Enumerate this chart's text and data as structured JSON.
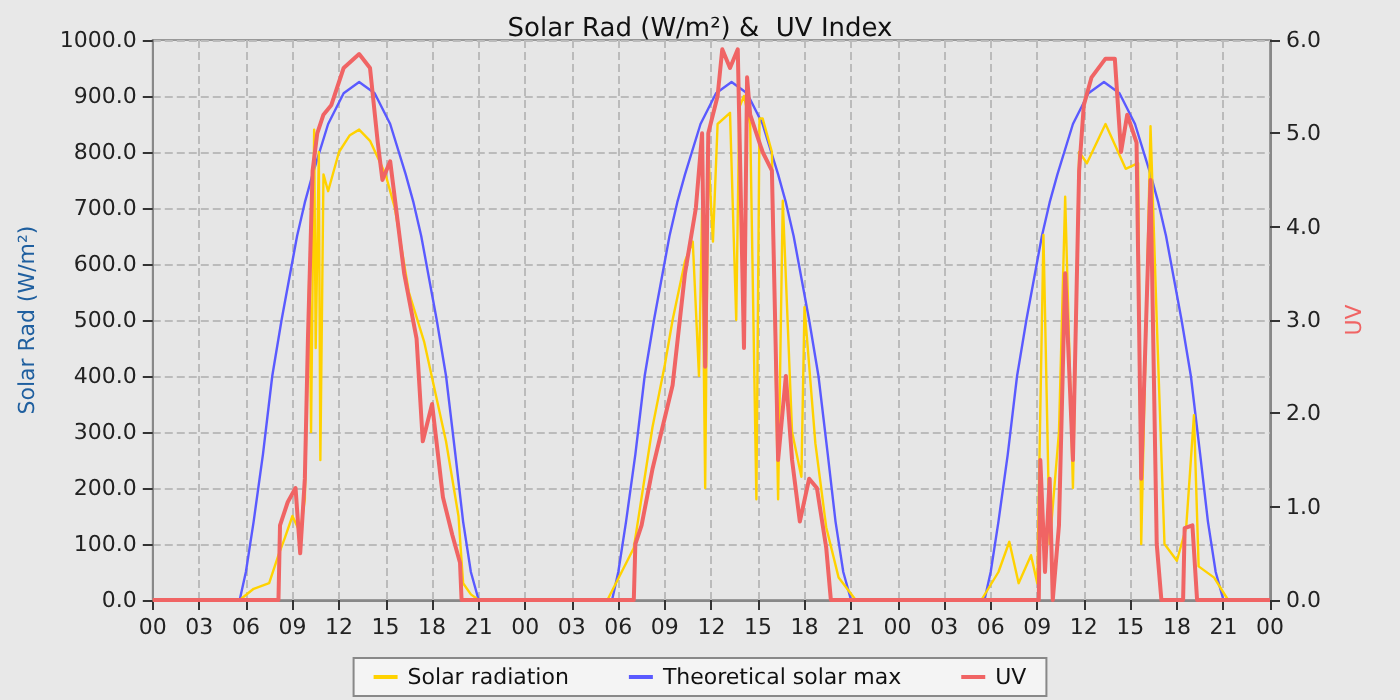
{
  "chart_data": {
    "type": "line",
    "title": "Solar Rad (W/m²) &  UV Index",
    "ylabel": "Solar Rad (W/m²)",
    "y2label": "UV",
    "xlim": [
      0,
      72
    ],
    "xticks": [
      {
        "value": 0,
        "label": "00"
      },
      {
        "value": 3,
        "label": "03"
      },
      {
        "value": 6,
        "label": "06"
      },
      {
        "value": 9,
        "label": "09"
      },
      {
        "value": 12,
        "label": "12"
      },
      {
        "value": 15,
        "label": "15"
      },
      {
        "value": 18,
        "label": "18"
      },
      {
        "value": 21,
        "label": "21"
      },
      {
        "value": 24,
        "label": "00"
      },
      {
        "value": 27,
        "label": "03"
      },
      {
        "value": 30,
        "label": "06"
      },
      {
        "value": 33,
        "label": "09"
      },
      {
        "value": 36,
        "label": "12"
      },
      {
        "value": 39,
        "label": "15"
      },
      {
        "value": 42,
        "label": "18"
      },
      {
        "value": 45,
        "label": "21"
      },
      {
        "value": 48,
        "label": "00"
      },
      {
        "value": 51,
        "label": "03"
      },
      {
        "value": 54,
        "label": "06"
      },
      {
        "value": 57,
        "label": "09"
      },
      {
        "value": 60,
        "label": "12"
      },
      {
        "value": 63,
        "label": "15"
      },
      {
        "value": 66,
        "label": "18"
      },
      {
        "value": 69,
        "label": "21"
      },
      {
        "value": 72,
        "label": "00"
      }
    ],
    "ylim": [
      0,
      1000
    ],
    "yticks": [
      {
        "value": 0,
        "label": "0.0"
      },
      {
        "value": 100,
        "label": "100.0"
      },
      {
        "value": 200,
        "label": "200.0"
      },
      {
        "value": 300,
        "label": "300.0"
      },
      {
        "value": 400,
        "label": "400.0"
      },
      {
        "value": 500,
        "label": "500.0"
      },
      {
        "value": 600,
        "label": "600.0"
      },
      {
        "value": 700,
        "label": "700.0"
      },
      {
        "value": 800,
        "label": "800.0"
      },
      {
        "value": 900,
        "label": "900.0"
      },
      {
        "value": 1000,
        "label": "1000.0"
      }
    ],
    "y2lim": [
      0,
      6
    ],
    "y2ticks": [
      {
        "value": 0,
        "label": "0.0"
      },
      {
        "value": 1,
        "label": "1.0"
      },
      {
        "value": 2,
        "label": "2.0"
      },
      {
        "value": 3,
        "label": "3.0"
      },
      {
        "value": 4,
        "label": "4.0"
      },
      {
        "value": 5,
        "label": "5.0"
      },
      {
        "value": 6,
        "label": "6.0"
      }
    ],
    "grid": true,
    "legend": "bottom",
    "marker": "none",
    "line_style": "solid",
    "series": [
      {
        "name": "Solar radiation",
        "color": "#ffd200",
        "x": [
          0,
          5.6,
          6.5,
          7.5,
          8.1,
          8.5,
          9,
          9.5,
          9.8,
          10.1,
          10.2,
          10.4,
          10.5,
          10.7,
          10.8,
          11,
          11.3,
          12,
          12.7,
          13.3,
          14,
          14.5,
          15,
          15.6,
          16.5,
          17.5,
          18.9,
          19.7,
          20,
          20.5,
          21,
          29.3,
          31,
          32.2,
          33,
          33.5,
          34.3,
          34.8,
          35.2,
          35.4,
          35.6,
          35.8,
          36.1,
          36.4,
          37.2,
          37.6,
          37.8,
          38.1,
          38.5,
          38.9,
          39.1,
          39.3,
          39.9,
          40.3,
          40.6,
          41.2,
          41.8,
          42,
          42.7,
          43.4,
          44.2,
          45.3,
          53.4,
          54.5,
          55.2,
          55.8,
          56.6,
          57,
          57.4,
          57.8,
          58.4,
          58.8,
          59.3,
          59.7,
          60.2,
          61.4,
          62.7,
          63.5,
          63.7,
          64.3,
          64.7,
          65.2,
          66,
          66.6,
          67.1,
          67.4,
          68.4,
          69.3,
          72
        ],
        "values": [
          0,
          0,
          20,
          30,
          80,
          110,
          150,
          120,
          180,
          600,
          300,
          840,
          450,
          800,
          250,
          760,
          730,
          800,
          830,
          840,
          820,
          790,
          760,
          700,
          550,
          460,
          283,
          150,
          30,
          10,
          0,
          0,
          93,
          308,
          420,
          500,
          605,
          640,
          400,
          700,
          200,
          800,
          640,
          850,
          870,
          500,
          880,
          900,
          850,
          180,
          860,
          860,
          800,
          180,
          713,
          300,
          220,
          523,
          280,
          130,
          40,
          0,
          0,
          50,
          104,
          30,
          80,
          30,
          652,
          100,
          300,
          720,
          200,
          800,
          780,
          850,
          770,
          780,
          100,
          846,
          500,
          100,
          70,
          130,
          330,
          60,
          40,
          0,
          0
        ]
      },
      {
        "name": "Theoretical solar max",
        "color": "#5a5aff",
        "x": [
          0,
          5.6,
          6,
          6.5,
          7.1,
          7.7,
          8.3,
          9.3,
          9.8,
          10.3,
          11.3,
          12.3,
          13.3,
          14.3,
          15.3,
          16.3,
          16.8,
          17.3,
          18.3,
          18.9,
          19.5,
          20,
          20.5,
          21,
          29.6,
          30,
          30.5,
          31.1,
          31.7,
          32.3,
          33.3,
          33.8,
          34.3,
          35.3,
          36.3,
          37.3,
          38.3,
          39.3,
          40.3,
          40.8,
          41.3,
          42.3,
          42.9,
          43.5,
          44,
          44.5,
          45,
          53.6,
          54,
          54.5,
          55.1,
          55.7,
          56.3,
          57.3,
          57.8,
          58.3,
          59.3,
          60.3,
          61.3,
          62.3,
          63.3,
          64.3,
          64.8,
          65.3,
          66.3,
          66.9,
          67.5,
          68,
          68.5,
          69,
          72
        ],
        "values": [
          0,
          0,
          50,
          140,
          260,
          400,
          500,
          650,
          710,
          760,
          850,
          905,
          925,
          905,
          850,
          760,
          710,
          650,
          500,
          400,
          260,
          140,
          50,
          0,
          0,
          50,
          140,
          260,
          400,
          500,
          650,
          710,
          760,
          850,
          905,
          925,
          905,
          850,
          760,
          710,
          650,
          500,
          400,
          260,
          140,
          50,
          0,
          0,
          50,
          140,
          260,
          400,
          500,
          650,
          710,
          760,
          850,
          905,
          925,
          905,
          850,
          760,
          710,
          650,
          500,
          400,
          260,
          140,
          50,
          0,
          0
        ]
      },
      {
        "name": "UV",
        "color": "#f06464",
        "axis": "y2",
        "x": [
          0,
          8.1,
          8.2,
          8.7,
          9.2,
          9.5,
          9.8,
          10,
          10.3,
          10.6,
          11,
          11.5,
          12.3,
          13.3,
          14,
          14.5,
          14.8,
          15.3,
          16.2,
          17,
          17.4,
          18,
          18.7,
          19.3,
          19.8,
          19.9,
          31,
          31.1,
          31.5,
          32.2,
          33.5,
          34.3,
          35,
          35.4,
          35.6,
          35.8,
          36.4,
          36.7,
          37.2,
          37.7,
          38.1,
          38.3,
          38.5,
          39.3,
          39.9,
          40.3,
          40.8,
          41.2,
          41.7,
          42.3,
          42.8,
          43.4,
          43.7,
          57.1,
          57.2,
          57.5,
          57.8,
          58,
          58.4,
          58.8,
          59.3,
          59.7,
          60,
          60.5,
          61.4,
          62,
          62.4,
          62.8,
          63.4,
          63.7,
          64.3,
          64.7,
          65,
          66.4,
          66.5,
          67,
          67.3,
          72
        ],
        "values": [
          0,
          0,
          0.8,
          1.05,
          1.2,
          0.5,
          1.3,
          2.8,
          4.6,
          5.0,
          5.2,
          5.3,
          5.7,
          5.85,
          5.7,
          4.9,
          4.5,
          4.7,
          3.5,
          2.8,
          1.7,
          2.1,
          1.1,
          0.7,
          0.4,
          0,
          0,
          0.6,
          0.8,
          1.4,
          2.3,
          3.5,
          4.2,
          5.0,
          2.5,
          5.0,
          5.4,
          5.9,
          5.7,
          5.9,
          2.7,
          5.6,
          5.2,
          4.8,
          4.6,
          1.5,
          2.4,
          1.5,
          0.84,
          1.3,
          1.2,
          0.56,
          0,
          0,
          1.5,
          0.3,
          1.3,
          0,
          0.8,
          3.5,
          1.5,
          4.6,
          5.3,
          5.6,
          5.8,
          5.8,
          4.8,
          5.2,
          4.9,
          1.3,
          4.5,
          0.6,
          0,
          0,
          0.77,
          0.8,
          0,
          0
        ]
      }
    ]
  }
}
